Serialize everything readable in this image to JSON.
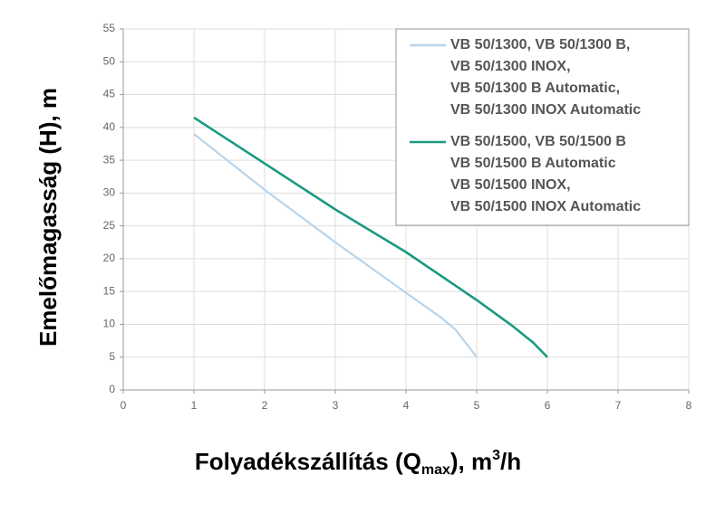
{
  "chart_data": {
    "type": "line",
    "xlabel": {
      "main": "Folyadékszállítás (Q",
      "sub": "max",
      "after": "), m",
      "sup": "3",
      "end": "/h"
    },
    "ylabel": "Emelőmagasság (H), m",
    "xlim": [
      0,
      8
    ],
    "xticks": [
      0,
      1,
      2,
      3,
      4,
      5,
      6,
      7,
      8
    ],
    "ylim": [
      0,
      55
    ],
    "yticks": [
      0,
      5,
      10,
      15,
      20,
      25,
      30,
      35,
      40,
      45,
      50,
      55
    ],
    "grid": true,
    "legend": "upper right",
    "series": [
      {
        "name": [
          "VB 50/1300, VB 50/1300 B,",
          "VB 50/1300 INOX,",
          "VB 50/1300 B Automatic,",
          "VB 50/1300 INOX Automatic"
        ],
        "color": "#b8d4ea",
        "x": [
          1,
          2,
          3,
          4,
          4.5,
          4.7,
          4.8,
          5
        ],
        "values": [
          39,
          30.5,
          22.5,
          14.8,
          11,
          9.2,
          7.8,
          5
        ]
      },
      {
        "name": [
          "VB 50/1500, VB 50/1500 B",
          "VB 50/1500 B Automatic",
          "VB 50/1500 INOX,",
          "VB 50/1500 INOX Automatic"
        ],
        "color": "#1a9a82",
        "x": [
          1,
          2,
          3,
          4,
          5,
          5.5,
          5.8,
          6
        ],
        "values": [
          41.5,
          34.5,
          27.5,
          21,
          13.7,
          9.8,
          7.2,
          5
        ]
      }
    ]
  }
}
